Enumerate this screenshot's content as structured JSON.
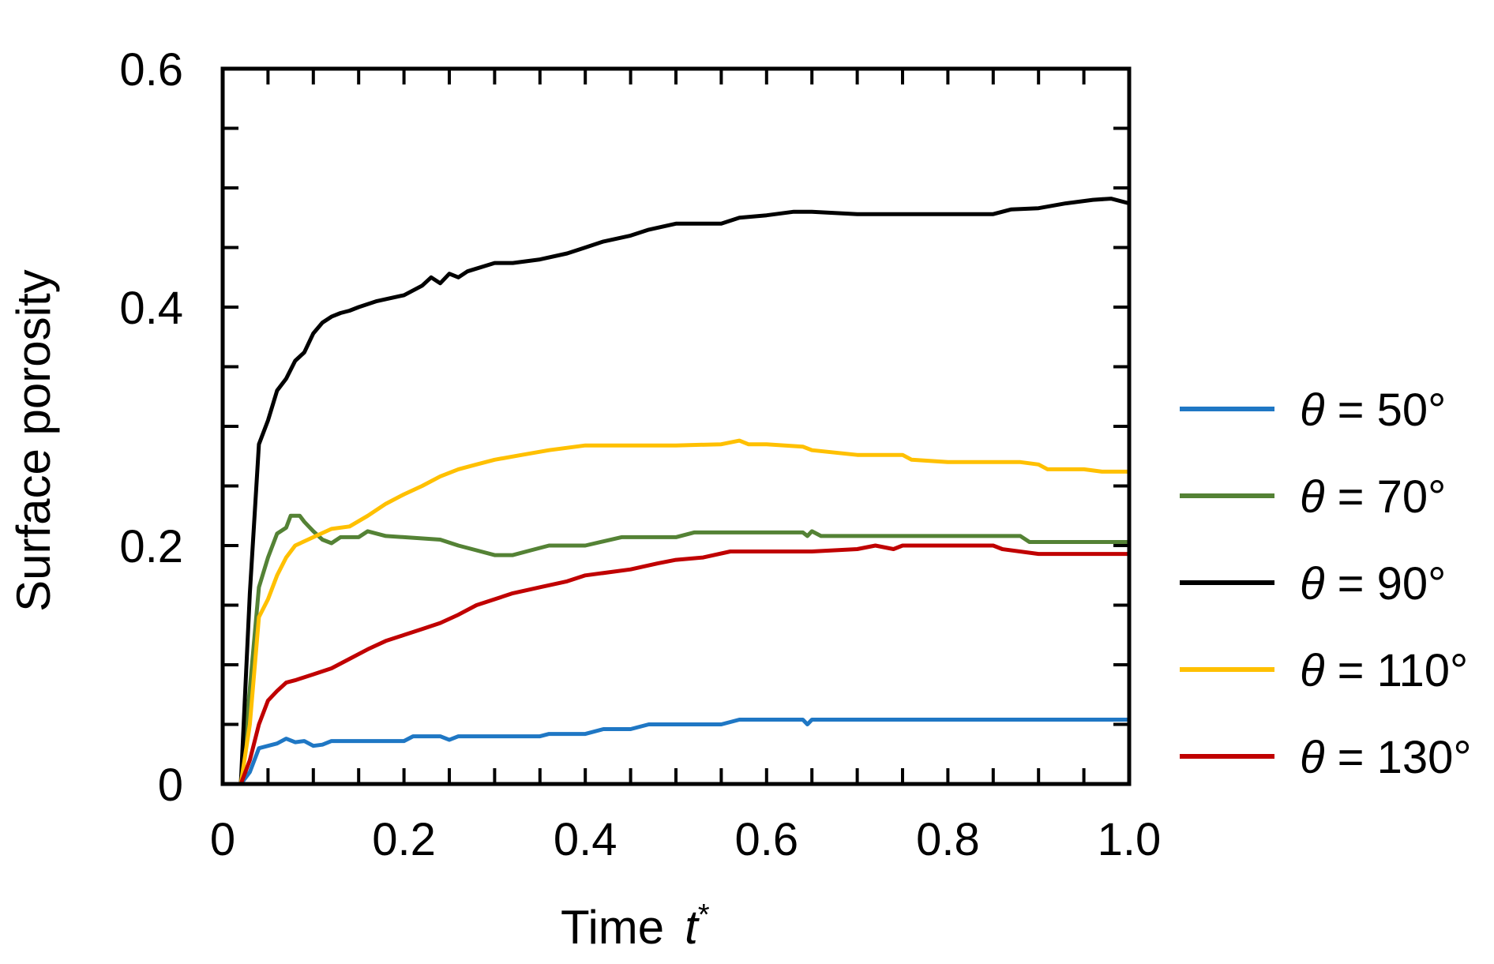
{
  "chart_data": {
    "type": "line",
    "title": "",
    "xlabel": "Time",
    "xlabel_symbol": "t",
    "xlabel_superscript": "*",
    "ylabel": "Surface porosity",
    "xlim": [
      0,
      1.0
    ],
    "ylim": [
      0,
      0.6
    ],
    "x_ticks": [
      "0",
      "0.2",
      "0.4",
      "0.6",
      "0.8",
      "1.0"
    ],
    "x_tick_values": [
      0,
      0.2,
      0.4,
      0.6,
      0.8,
      1.0
    ],
    "y_ticks": [
      "0",
      "0.2",
      "0.4",
      "0.6"
    ],
    "y_tick_values": [
      0,
      0.2,
      0.4,
      0.6
    ],
    "grid": false,
    "legend_placement": "right",
    "legend_symbol": "θ",
    "series": [
      {
        "name": "θ = 50°",
        "label_symbol": "θ",
        "label_value": " = 50°",
        "color": "#1f77c4",
        "points": [
          [
            0,
            0
          ],
          [
            0.02,
            0
          ],
          [
            0.03,
            0.01
          ],
          [
            0.04,
            0.03
          ],
          [
            0.05,
            0.032
          ],
          [
            0.06,
            0.034
          ],
          [
            0.07,
            0.038
          ],
          [
            0.08,
            0.035
          ],
          [
            0.09,
            0.036
          ],
          [
            0.1,
            0.032
          ],
          [
            0.11,
            0.033
          ],
          [
            0.12,
            0.036
          ],
          [
            0.15,
            0.036
          ],
          [
            0.2,
            0.036
          ],
          [
            0.21,
            0.04
          ],
          [
            0.24,
            0.04
          ],
          [
            0.25,
            0.037
          ],
          [
            0.26,
            0.04
          ],
          [
            0.3,
            0.04
          ],
          [
            0.35,
            0.04
          ],
          [
            0.36,
            0.042
          ],
          [
            0.4,
            0.042
          ],
          [
            0.42,
            0.046
          ],
          [
            0.45,
            0.046
          ],
          [
            0.47,
            0.05
          ],
          [
            0.5,
            0.05
          ],
          [
            0.55,
            0.05
          ],
          [
            0.57,
            0.054
          ],
          [
            0.6,
            0.054
          ],
          [
            0.64,
            0.054
          ],
          [
            0.645,
            0.05
          ],
          [
            0.65,
            0.054
          ],
          [
            0.7,
            0.054
          ],
          [
            0.8,
            0.054
          ],
          [
            0.9,
            0.054
          ],
          [
            1.0,
            0.054
          ]
        ]
      },
      {
        "name": "θ = 70°",
        "label_symbol": "θ",
        "label_value": " = 70°",
        "color": "#548235",
        "points": [
          [
            0,
            0
          ],
          [
            0.02,
            0
          ],
          [
            0.03,
            0.08
          ],
          [
            0.04,
            0.165
          ],
          [
            0.05,
            0.19
          ],
          [
            0.06,
            0.21
          ],
          [
            0.07,
            0.215
          ],
          [
            0.075,
            0.225
          ],
          [
            0.085,
            0.225
          ],
          [
            0.09,
            0.22
          ],
          [
            0.1,
            0.212
          ],
          [
            0.11,
            0.205
          ],
          [
            0.12,
            0.202
          ],
          [
            0.13,
            0.207
          ],
          [
            0.15,
            0.207
          ],
          [
            0.16,
            0.212
          ],
          [
            0.18,
            0.208
          ],
          [
            0.2,
            0.207
          ],
          [
            0.24,
            0.205
          ],
          [
            0.26,
            0.2
          ],
          [
            0.28,
            0.196
          ],
          [
            0.3,
            0.192
          ],
          [
            0.32,
            0.192
          ],
          [
            0.34,
            0.196
          ],
          [
            0.36,
            0.2
          ],
          [
            0.4,
            0.2
          ],
          [
            0.44,
            0.207
          ],
          [
            0.5,
            0.207
          ],
          [
            0.52,
            0.211
          ],
          [
            0.6,
            0.211
          ],
          [
            0.64,
            0.211
          ],
          [
            0.645,
            0.208
          ],
          [
            0.65,
            0.212
          ],
          [
            0.66,
            0.208
          ],
          [
            0.7,
            0.208
          ],
          [
            0.8,
            0.208
          ],
          [
            0.88,
            0.208
          ],
          [
            0.89,
            0.203
          ],
          [
            0.95,
            0.203
          ],
          [
            1.0,
            0.203
          ]
        ]
      },
      {
        "name": "θ = 90°",
        "label_symbol": "θ",
        "label_value": " = 90°",
        "color": "#000000",
        "points": [
          [
            0,
            0
          ],
          [
            0.02,
            0
          ],
          [
            0.03,
            0.16
          ],
          [
            0.04,
            0.285
          ],
          [
            0.05,
            0.305
          ],
          [
            0.06,
            0.33
          ],
          [
            0.07,
            0.34
          ],
          [
            0.08,
            0.355
          ],
          [
            0.09,
            0.362
          ],
          [
            0.1,
            0.378
          ],
          [
            0.11,
            0.387
          ],
          [
            0.12,
            0.392
          ],
          [
            0.13,
            0.395
          ],
          [
            0.14,
            0.397
          ],
          [
            0.15,
            0.4
          ],
          [
            0.17,
            0.405
          ],
          [
            0.2,
            0.41
          ],
          [
            0.22,
            0.418
          ],
          [
            0.23,
            0.425
          ],
          [
            0.24,
            0.42
          ],
          [
            0.25,
            0.428
          ],
          [
            0.26,
            0.425
          ],
          [
            0.27,
            0.43
          ],
          [
            0.3,
            0.437
          ],
          [
            0.32,
            0.437
          ],
          [
            0.35,
            0.44
          ],
          [
            0.38,
            0.445
          ],
          [
            0.4,
            0.45
          ],
          [
            0.42,
            0.455
          ],
          [
            0.45,
            0.46
          ],
          [
            0.47,
            0.465
          ],
          [
            0.5,
            0.47
          ],
          [
            0.55,
            0.47
          ],
          [
            0.57,
            0.475
          ],
          [
            0.6,
            0.477
          ],
          [
            0.63,
            0.48
          ],
          [
            0.65,
            0.48
          ],
          [
            0.7,
            0.478
          ],
          [
            0.8,
            0.478
          ],
          [
            0.85,
            0.478
          ],
          [
            0.87,
            0.482
          ],
          [
            0.9,
            0.483
          ],
          [
            0.93,
            0.487
          ],
          [
            0.96,
            0.49
          ],
          [
            0.98,
            0.491
          ],
          [
            1.0,
            0.487
          ]
        ]
      },
      {
        "name": "θ = 110°",
        "label_symbol": "θ",
        "label_value": " = 110°",
        "color": "#ffc000",
        "points": [
          [
            0,
            0
          ],
          [
            0.02,
            0
          ],
          [
            0.03,
            0.05
          ],
          [
            0.04,
            0.14
          ],
          [
            0.05,
            0.155
          ],
          [
            0.06,
            0.175
          ],
          [
            0.07,
            0.19
          ],
          [
            0.08,
            0.2
          ],
          [
            0.1,
            0.207
          ],
          [
            0.12,
            0.214
          ],
          [
            0.14,
            0.216
          ],
          [
            0.16,
            0.225
          ],
          [
            0.18,
            0.235
          ],
          [
            0.2,
            0.243
          ],
          [
            0.22,
            0.25
          ],
          [
            0.24,
            0.258
          ],
          [
            0.26,
            0.264
          ],
          [
            0.28,
            0.268
          ],
          [
            0.3,
            0.272
          ],
          [
            0.33,
            0.276
          ],
          [
            0.36,
            0.28
          ],
          [
            0.4,
            0.284
          ],
          [
            0.45,
            0.284
          ],
          [
            0.5,
            0.284
          ],
          [
            0.55,
            0.285
          ],
          [
            0.57,
            0.288
          ],
          [
            0.58,
            0.285
          ],
          [
            0.6,
            0.285
          ],
          [
            0.64,
            0.283
          ],
          [
            0.65,
            0.28
          ],
          [
            0.7,
            0.276
          ],
          [
            0.75,
            0.276
          ],
          [
            0.76,
            0.272
          ],
          [
            0.8,
            0.27
          ],
          [
            0.88,
            0.27
          ],
          [
            0.9,
            0.268
          ],
          [
            0.91,
            0.264
          ],
          [
            0.95,
            0.264
          ],
          [
            0.97,
            0.262
          ],
          [
            1.0,
            0.262
          ]
        ]
      },
      {
        "name": "θ = 130°",
        "label_symbol": "θ",
        "label_value": " = 130°",
        "color": "#c00000",
        "points": [
          [
            0,
            0
          ],
          [
            0.02,
            0
          ],
          [
            0.03,
            0.02
          ],
          [
            0.04,
            0.05
          ],
          [
            0.05,
            0.07
          ],
          [
            0.06,
            0.078
          ],
          [
            0.07,
            0.085
          ],
          [
            0.08,
            0.087
          ],
          [
            0.1,
            0.092
          ],
          [
            0.12,
            0.097
          ],
          [
            0.14,
            0.105
          ],
          [
            0.16,
            0.113
          ],
          [
            0.18,
            0.12
          ],
          [
            0.2,
            0.125
          ],
          [
            0.22,
            0.13
          ],
          [
            0.24,
            0.135
          ],
          [
            0.26,
            0.142
          ],
          [
            0.28,
            0.15
          ],
          [
            0.3,
            0.155
          ],
          [
            0.32,
            0.16
          ],
          [
            0.35,
            0.165
          ],
          [
            0.38,
            0.17
          ],
          [
            0.4,
            0.175
          ],
          [
            0.45,
            0.18
          ],
          [
            0.48,
            0.185
          ],
          [
            0.5,
            0.188
          ],
          [
            0.53,
            0.19
          ],
          [
            0.56,
            0.195
          ],
          [
            0.6,
            0.195
          ],
          [
            0.65,
            0.195
          ],
          [
            0.7,
            0.197
          ],
          [
            0.72,
            0.2
          ],
          [
            0.74,
            0.197
          ],
          [
            0.75,
            0.2
          ],
          [
            0.8,
            0.2
          ],
          [
            0.85,
            0.2
          ],
          [
            0.86,
            0.197
          ],
          [
            0.9,
            0.193
          ],
          [
            0.95,
            0.193
          ],
          [
            1.0,
            0.193
          ]
        ]
      }
    ]
  }
}
